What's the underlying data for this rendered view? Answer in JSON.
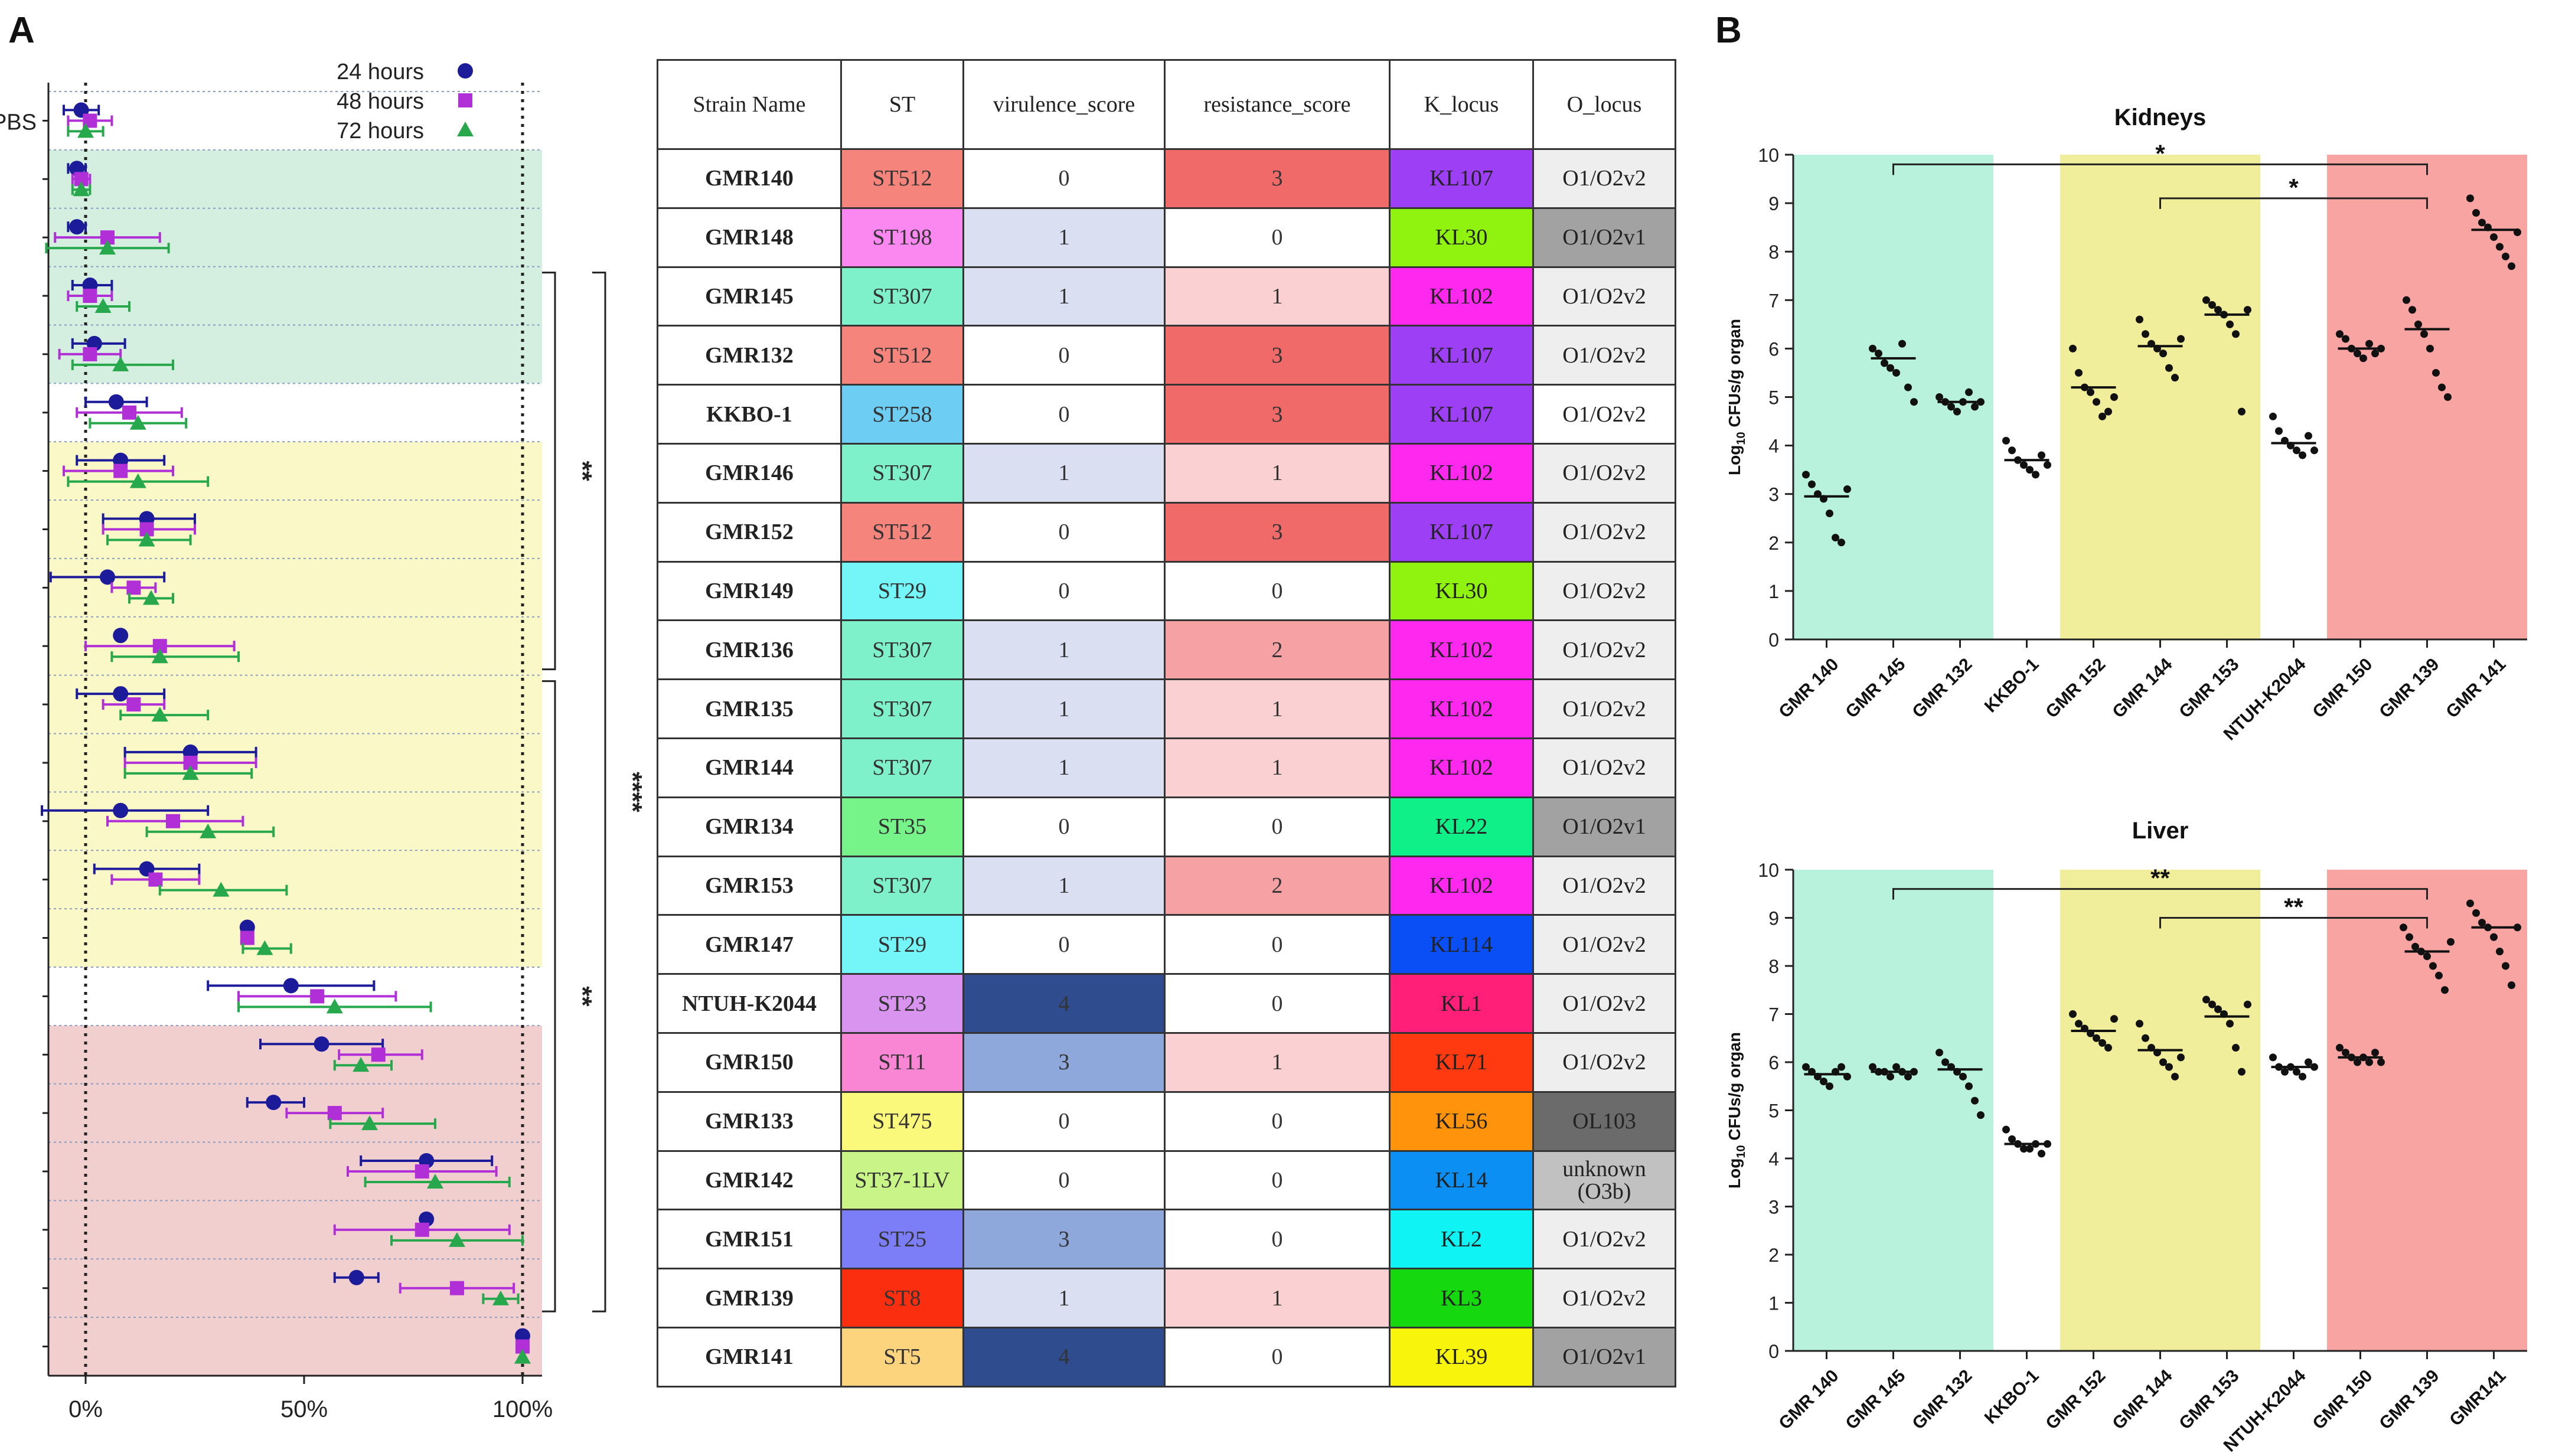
{
  "panel_labels": {
    "a": "A",
    "b": "B"
  },
  "colors": {
    "green_group": "#d4efe0",
    "yellow_group": "#fbf8c8",
    "red_group": "#f2cfcf",
    "teal_band": "#b8f2dc",
    "yellow_band": "#f0ee9a",
    "red_band": "#f8a4a2",
    "blue_marker": "#1c1c9a",
    "purple_marker": "#b12fd6",
    "green_marker": "#27a84c"
  },
  "chart_data": [
    {
      "type": "scatter",
      "id": "mortality-forest-plot",
      "title": "",
      "legend": [
        {
          "label": "24 hours",
          "color": "#1c1c9a",
          "marker": "circle"
        },
        {
          "label": "48 hours",
          "color": "#b12fd6",
          "marker": "square"
        },
        {
          "label": "72 hours",
          "color": "#27a84c",
          "marker": "triangle"
        }
      ],
      "legend_position": "top-right",
      "xlim": [
        -8,
        103
      ],
      "xtick_values": [
        0,
        50,
        100
      ],
      "xtick_labels": [
        "0%",
        "50%",
        "100%"
      ],
      "rows": [
        "PBS",
        "GMR140",
        "GMR148",
        "GMR145",
        "GMR132",
        "KKBO-1",
        "GMR146",
        "GMR152",
        "GMR149",
        "GMR136",
        "GMR135",
        "GMR144",
        "GMR134",
        "GMR153",
        "GMR147",
        "NTUH-K2044",
        "GMR150",
        "GMR133",
        "GMR142",
        "GMR151",
        "GMR139",
        "GMR141"
      ],
      "row_labels": [
        "PBS"
      ],
      "groups": [
        {
          "color": "green",
          "from_row": 1,
          "to_row": 4
        },
        {
          "color": "yellow",
          "from_row": 6,
          "to_row": 14
        },
        {
          "color": "red",
          "from_row": 16,
          "to_row": 21
        }
      ],
      "series": [
        {
          "name": "24 hours",
          "values": [
            -1,
            -2,
            -2,
            1,
            2,
            7,
            8,
            14,
            5,
            8,
            8,
            24,
            8,
            14,
            37,
            47,
            54,
            43,
            78,
            78,
            62,
            100
          ],
          "lower": [
            -5,
            -4,
            -4,
            -3,
            -3,
            0,
            -2,
            4,
            -8,
            8,
            -2,
            9,
            -10,
            2,
            37,
            28,
            40,
            37,
            63,
            78,
            57,
            100
          ],
          "upper": [
            3,
            0,
            0,
            6,
            9,
            14,
            18,
            25,
            18,
            8,
            18,
            39,
            28,
            26,
            37,
            66,
            68,
            50,
            93,
            78,
            67,
            100
          ]
        },
        {
          "name": "48 hours",
          "values": [
            1,
            -1,
            5,
            1,
            1,
            10,
            8,
            14,
            11,
            17,
            11,
            24,
            20,
            16,
            37,
            53,
            67,
            57,
            77,
            77,
            85,
            100
          ],
          "lower": [
            -4,
            -3,
            -7,
            -4,
            -6,
            -2,
            -5,
            4,
            6,
            0,
            4,
            9,
            5,
            6,
            37,
            35,
            58,
            46,
            60,
            57,
            72,
            100
          ],
          "upper": [
            6,
            1,
            17,
            6,
            8,
            22,
            20,
            25,
            16,
            34,
            18,
            39,
            36,
            26,
            37,
            71,
            77,
            68,
            94,
            97,
            98,
            100
          ],
          "arrange": "square"
        },
        {
          "name": "72 hours",
          "values": [
            0,
            -1,
            5,
            4,
            8,
            12,
            12,
            14,
            15,
            17,
            17,
            24,
            28,
            31,
            41,
            57,
            63,
            65,
            80,
            85,
            95,
            100
          ],
          "lower": [
            -4,
            -3,
            -9,
            -2,
            -3,
            1,
            -4,
            5,
            10,
            6,
            8,
            9,
            14,
            17,
            36,
            35,
            57,
            56,
            64,
            70,
            91,
            100
          ],
          "upper": [
            4,
            1,
            19,
            10,
            20,
            23,
            28,
            24,
            20,
            35,
            28,
            38,
            43,
            46,
            47,
            79,
            70,
            80,
            97,
            100,
            99,
            100
          ]
        }
      ],
      "brackets": [
        {
          "from_row": 3,
          "to_row": 9,
          "label": "**"
        },
        {
          "from_row": 3,
          "to_row": 20,
          "label": "****"
        },
        {
          "from_row": 10,
          "to_row": 20,
          "label": "**"
        }
      ]
    },
    {
      "type": "table",
      "id": "strain-table",
      "columns": [
        "Strain Name",
        "ST",
        "virulence_score",
        "resistance_score",
        "K_locus",
        "O_locus"
      ],
      "rows": [
        {
          "name": "GMR140",
          "st": "ST512",
          "st_color": "#f4847c",
          "vir": "0",
          "res": "3",
          "k": "KL107",
          "k_color": "#9d3ff5",
          "o": "O1/O2v2",
          "o_color": "#eeeeee"
        },
        {
          "name": "GMR148",
          "st": "ST198",
          "st_color": "#fa88f0",
          "vir": "1",
          "res": "0",
          "k": "KL30",
          "k_color": "#8ff20f",
          "o": "O1/O2v1",
          "o_color": "#a2a2a2"
        },
        {
          "name": "GMR145",
          "st": "ST307",
          "st_color": "#7ef0ca",
          "vir": "1",
          "res": "1",
          "k": "KL102",
          "k_color": "#ff28ee",
          "o": "O1/O2v2",
          "o_color": "#eeeeee"
        },
        {
          "name": "GMR132",
          "st": "ST512",
          "st_color": "#f4847c",
          "vir": "0",
          "res": "3",
          "k": "KL107",
          "k_color": "#9d3ff5",
          "o": "O1/O2v2",
          "o_color": "#eeeeee"
        },
        {
          "name": "KKBO-1",
          "st": "ST258",
          "st_color": "#6ecdf2",
          "vir": "0",
          "res": "3",
          "k": "KL107",
          "k_color": "#9d3ff5",
          "o": "O1/O2v2",
          "o_color": "#ffffff"
        },
        {
          "name": "GMR146",
          "st": "ST307",
          "st_color": "#7ef0ca",
          "vir": "1",
          "res": "1",
          "k": "KL102",
          "k_color": "#ff28ee",
          "o": "O1/O2v2",
          "o_color": "#eeeeee"
        },
        {
          "name": "GMR152",
          "st": "ST512",
          "st_color": "#f4847c",
          "vir": "0",
          "res": "3",
          "k": "KL107",
          "k_color": "#9d3ff5",
          "o": "O1/O2v2",
          "o_color": "#eeeeee"
        },
        {
          "name": "GMR149",
          "st": "ST29",
          "st_color": "#74f5f7",
          "vir": "0",
          "res": "0",
          "k": "KL30",
          "k_color": "#8ff20f",
          "o": "O1/O2v2",
          "o_color": "#eeeeee"
        },
        {
          "name": "GMR136",
          "st": "ST307",
          "st_color": "#7ef0ca",
          "vir": "1",
          "res": "2",
          "k": "KL102",
          "k_color": "#ff28ee",
          "o": "O1/O2v2",
          "o_color": "#eeeeee"
        },
        {
          "name": "GMR135",
          "st": "ST307",
          "st_color": "#7ef0ca",
          "vir": "1",
          "res": "1",
          "k": "KL102",
          "k_color": "#ff28ee",
          "o": "O1/O2v2",
          "o_color": "#eeeeee"
        },
        {
          "name": "GMR144",
          "st": "ST307",
          "st_color": "#7ef0ca",
          "vir": "1",
          "res": "1",
          "k": "KL102",
          "k_color": "#ff28ee",
          "o": "O1/O2v2",
          "o_color": "#eeeeee"
        },
        {
          "name": "GMR134",
          "st": "ST35",
          "st_color": "#76f48a",
          "vir": "0",
          "res": "0",
          "k": "KL22",
          "k_color": "#0ff089",
          "o": "O1/O2v1",
          "o_color": "#a2a2a2"
        },
        {
          "name": "GMR153",
          "st": "ST307",
          "st_color": "#7ef0ca",
          "vir": "1",
          "res": "2",
          "k": "KL102",
          "k_color": "#ff28ee",
          "o": "O1/O2v2",
          "o_color": "#eeeeee"
        },
        {
          "name": "GMR147",
          "st": "ST29",
          "st_color": "#74f5f7",
          "vir": "0",
          "res": "0",
          "k": "KL114",
          "k_color": "#0a4ef5",
          "o": "O1/O2v2",
          "o_color": "#eeeeee"
        },
        {
          "name": "NTUH-K2044",
          "st": "ST23",
          "st_color": "#d994f0",
          "vir": "4",
          "res": "0",
          "k": "KL1",
          "k_color": "#ff1f79",
          "o": "O1/O2v2",
          "o_color": "#eeeeee"
        },
        {
          "name": "GMR150",
          "st": "ST11",
          "st_color": "#f986d5",
          "vir": "3",
          "res": "1",
          "k": "KL71",
          "k_color": "#ff3a10",
          "o": "O1/O2v2",
          "o_color": "#eeeeee"
        },
        {
          "name": "GMR133",
          "st": "ST475",
          "st_color": "#fbf97c",
          "vir": "0",
          "res": "0",
          "k": "KL56",
          "k_color": "#ff930b",
          "o": "OL103",
          "o_color": "#6b6b6b"
        },
        {
          "name": "GMR142",
          "st": "ST37-1LV",
          "st_color": "#c8f488",
          "vir": "0",
          "res": "0",
          "k": "KL14",
          "k_color": "#0b8ff2",
          "o": "unknown (O3b)",
          "o_color": "#c1c1c1"
        },
        {
          "name": "GMR151",
          "st": "ST25",
          "st_color": "#7b7ef7",
          "vir": "3",
          "res": "0",
          "k": "KL2",
          "k_color": "#0ff3f5",
          "o": "O1/O2v2",
          "o_color": "#eeeeee"
        },
        {
          "name": "GMR139",
          "st": "ST8",
          "st_color": "#fb2f0f",
          "vir": "1",
          "res": "1",
          "k": "KL3",
          "k_color": "#15d80f",
          "o": "O1/O2v2",
          "o_color": "#eeeeee"
        },
        {
          "name": "GMR141",
          "st": "ST5",
          "st_color": "#fdd47e",
          "vir": "4",
          "res": "0",
          "k": "KL39",
          "k_color": "#f9f40b",
          "o": "O1/O2v1",
          "o_color": "#a2a2a2"
        }
      ],
      "virulence_colors": {
        "0": "#ffffff",
        "1": "#dadff2",
        "3": "#8ea8dc",
        "4": "#2f4d8e"
      },
      "resistance_colors": {
        "0": "#ffffff",
        "1": "#fbd0d2",
        "2": "#f6a2a4",
        "3": "#f06a6a"
      }
    },
    {
      "type": "scatter",
      "id": "kidneys-cfu",
      "title": "Kidneys",
      "ylabel": "Log10 CFUs/g organ",
      "ylabel_main": "Log",
      "ylabel_sub": "10",
      "ylabel_rest": " CFUs/g organ",
      "ylim": [
        0,
        10
      ],
      "yticks": [
        0,
        1,
        2,
        3,
        4,
        5,
        6,
        7,
        8,
        9,
        10
      ],
      "categories": [
        "GMR 140",
        "GMR 145",
        "GMR 132",
        "KKBO-1",
        "GMR 152",
        "GMR 144",
        "GMR 153",
        "NTUH-K2044",
        "GMR 150",
        "GMR 139",
        "GMR 141"
      ],
      "bands": [
        {
          "color": "teal",
          "from": 0,
          "to": 2
        },
        {
          "color": "yellow",
          "from": 4,
          "to": 6
        },
        {
          "color": "red",
          "from": 8,
          "to": 10
        }
      ],
      "means": [
        2.95,
        5.8,
        4.9,
        3.7,
        5.2,
        6.05,
        6.7,
        4.05,
        6.0,
        6.4,
        8.45
      ],
      "points": [
        [
          3.4,
          3.2,
          3.0,
          2.9,
          2.6,
          2.1,
          2.0,
          3.1
        ],
        [
          6.0,
          5.9,
          5.7,
          5.6,
          5.5,
          6.1,
          5.2,
          4.9
        ],
        [
          5.0,
          4.9,
          4.8,
          4.7,
          4.9,
          5.1,
          4.8,
          4.9
        ],
        [
          4.1,
          3.9,
          3.7,
          3.6,
          3.5,
          3.4,
          3.8,
          3.6
        ],
        [
          6.0,
          5.5,
          5.2,
          5.1,
          4.9,
          4.6,
          4.7,
          5.0
        ],
        [
          6.6,
          6.3,
          6.1,
          6.0,
          5.9,
          5.6,
          5.4,
          6.2
        ],
        [
          7.0,
          6.9,
          6.8,
          6.7,
          6.5,
          6.3,
          4.7,
          6.8
        ],
        [
          4.6,
          4.3,
          4.1,
          4.0,
          3.9,
          3.8,
          4.2,
          3.9
        ],
        [
          6.3,
          6.2,
          6.0,
          5.9,
          5.8,
          6.1,
          5.9,
          6.0
        ],
        [
          7.0,
          6.8,
          6.5,
          6.3,
          6.0,
          5.5,
          5.2,
          5.0
        ],
        [
          9.1,
          8.8,
          8.6,
          8.5,
          8.3,
          8.1,
          7.9,
          7.7,
          8.4
        ]
      ],
      "significance": [
        {
          "from_cat": 1,
          "to_cat": 9,
          "label": "*",
          "y": 9.8
        },
        {
          "from_cat": 5,
          "to_cat": 9,
          "label": "*",
          "y": 9.1
        }
      ]
    },
    {
      "type": "scatter",
      "id": "liver-cfu",
      "title": "Liver",
      "ylabel": "Log10 CFUs/g organ",
      "ylabel_main": "Log",
      "ylabel_sub": "10",
      "ylabel_rest": " CFUs/g organ",
      "ylim": [
        0,
        10
      ],
      "yticks": [
        0,
        1,
        2,
        3,
        4,
        5,
        6,
        7,
        8,
        9,
        10
      ],
      "categories": [
        "GMR 140",
        "GMR 145",
        "GMR 132",
        "KKBO-1",
        "GMR 152",
        "GMR 144",
        "GMR 153",
        "NTUH-K2044",
        "GMR 150",
        "GMR 139",
        "GMR141"
      ],
      "bands": [
        {
          "color": "teal",
          "from": 0,
          "to": 2
        },
        {
          "color": "yellow",
          "from": 4,
          "to": 6
        },
        {
          "color": "red",
          "from": 8,
          "to": 10
        }
      ],
      "means": [
        5.75,
        5.8,
        5.85,
        4.3,
        6.65,
        6.25,
        6.95,
        5.9,
        6.1,
        8.3,
        8.8
      ],
      "points": [
        [
          5.9,
          5.8,
          5.7,
          5.6,
          5.5,
          5.8,
          5.9,
          5.7
        ],
        [
          5.9,
          5.8,
          5.8,
          5.7,
          5.9,
          5.8,
          5.7,
          5.8
        ],
        [
          6.2,
          6.0,
          5.9,
          5.8,
          5.7,
          5.5,
          5.2,
          4.9
        ],
        [
          4.6,
          4.4,
          4.3,
          4.2,
          4.2,
          4.3,
          4.1,
          4.3
        ],
        [
          7.0,
          6.8,
          6.7,
          6.6,
          6.5,
          6.4,
          6.3,
          6.9
        ],
        [
          6.8,
          6.5,
          6.3,
          6.2,
          6.0,
          5.9,
          5.7,
          6.1
        ],
        [
          7.3,
          7.2,
          7.1,
          7.0,
          6.8,
          6.3,
          5.8,
          7.2
        ],
        [
          6.1,
          5.9,
          5.8,
          5.9,
          5.8,
          5.7,
          6.0,
          5.9
        ],
        [
          6.3,
          6.2,
          6.1,
          6.0,
          6.1,
          6.0,
          6.2,
          6.0
        ],
        [
          8.8,
          8.6,
          8.4,
          8.3,
          8.2,
          8.0,
          7.8,
          7.5,
          8.5
        ],
        [
          9.3,
          9.1,
          8.9,
          8.8,
          8.6,
          8.3,
          8.0,
          7.6,
          8.8
        ]
      ],
      "significance": [
        {
          "from_cat": 1,
          "to_cat": 9,
          "label": "**",
          "y": 9.6
        },
        {
          "from_cat": 5,
          "to_cat": 9,
          "label": "**",
          "y": 9.0
        }
      ]
    }
  ]
}
